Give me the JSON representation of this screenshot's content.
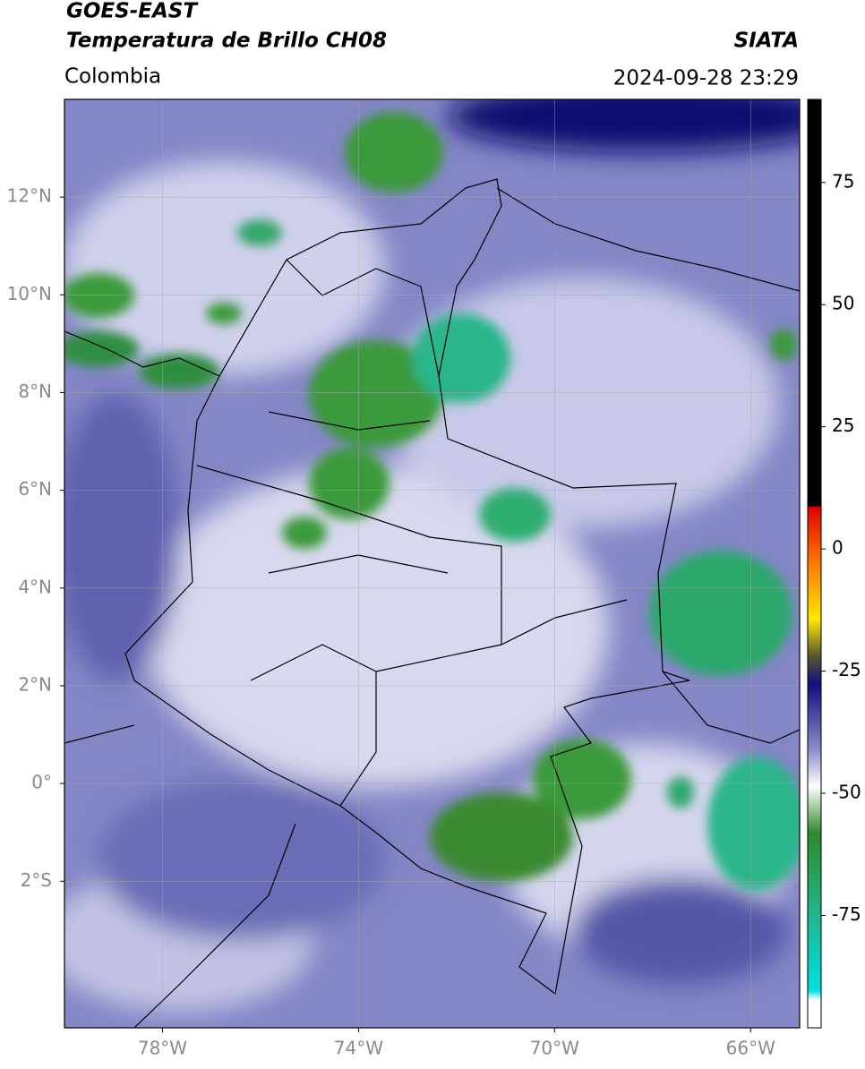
{
  "header": {
    "title": "GOES-EAST",
    "subtitle": "Temperatura de Brillo CH08",
    "source": "SIATA",
    "region": "Colombia",
    "timestamp": "2024-09-28 23:29"
  },
  "map": {
    "xlim": [
      -80,
      -65
    ],
    "ylim": [
      -5,
      14
    ],
    "xticks": [
      {
        "value": -78,
        "label": "78°W"
      },
      {
        "value": -74,
        "label": "74°W"
      },
      {
        "value": -70,
        "label": "70°W"
      },
      {
        "value": -66,
        "label": "66°W"
      }
    ],
    "yticks": [
      {
        "value": 12,
        "label": "12°N"
      },
      {
        "value": 10,
        "label": "10°N"
      },
      {
        "value": 8,
        "label": "8°N"
      },
      {
        "value": 6,
        "label": "6°N"
      },
      {
        "value": 4,
        "label": "4°N"
      },
      {
        "value": 2,
        "label": "2°N"
      },
      {
        "value": 0,
        "label": "0°"
      },
      {
        "value": -2,
        "label": "2°S"
      }
    ],
    "grid": true
  },
  "colorbar": {
    "lim": [
      -98,
      92
    ],
    "ticks": [
      75,
      50,
      25,
      0,
      -25,
      -50,
      -75
    ]
  }
}
